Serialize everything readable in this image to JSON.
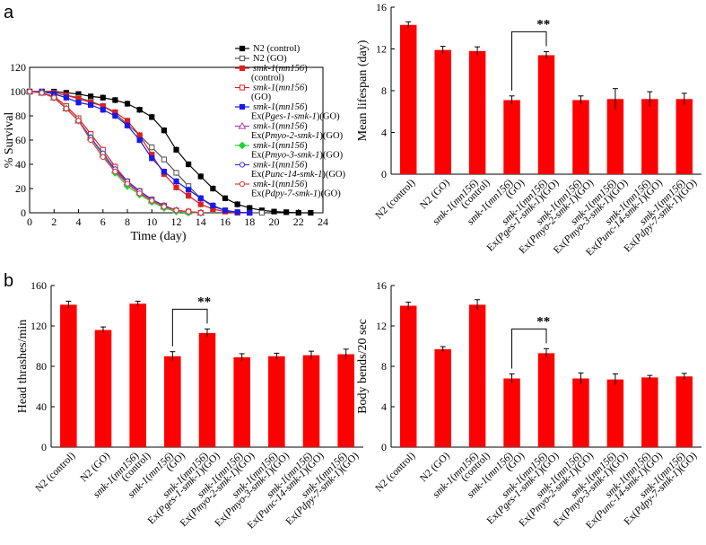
{
  "panels": {
    "a": "a",
    "b": "b"
  },
  "chart_data": [
    {
      "type": "line",
      "title": "",
      "xlabel": "Time (day)",
      "ylabel": "% Survival",
      "xlim": [
        0,
        24
      ],
      "ylim": [
        0,
        120
      ],
      "xticks": [
        "0",
        "2",
        "4",
        "6",
        "8",
        "10",
        "12",
        "14",
        "16",
        "18",
        "20",
        "22",
        "24"
      ],
      "yticks": [
        "0",
        "20",
        "40",
        "60",
        "80",
        "100",
        "120"
      ],
      "legend_position": "top-right",
      "series": [
        {
          "name": "N2 (control)",
          "label_parts": [
            "N2 (control)"
          ],
          "color": "#000000",
          "marker": "square",
          "filled": true,
          "x": [
            0,
            1,
            2,
            3,
            4,
            5,
            6,
            7,
            8,
            9,
            10,
            11,
            12,
            13,
            14,
            15,
            16,
            17,
            18,
            19,
            20,
            21,
            22,
            23
          ],
          "y": [
            100,
            100,
            100,
            99,
            98,
            96,
            95,
            93,
            90,
            85,
            79,
            68,
            52,
            40,
            30,
            20,
            12,
            7,
            4,
            2,
            1,
            0.5,
            0,
            0
          ]
        },
        {
          "name": "N2 (GO)",
          "label_parts": [
            "N2 (GO)"
          ],
          "color": "#555555",
          "marker": "square",
          "filled": false,
          "x": [
            0,
            1,
            2,
            3,
            4,
            5,
            6,
            7,
            8,
            9,
            10,
            11,
            12,
            13,
            14,
            15,
            16,
            17,
            18,
            19
          ],
          "y": [
            100,
            100,
            99,
            97,
            95,
            92,
            88,
            82,
            73,
            64,
            54,
            44,
            33,
            22,
            12,
            5,
            2,
            0.5,
            0,
            0
          ]
        },
        {
          "name": "smk-1(mn156)(control)",
          "label_parts": [
            "smk-1(mn156)",
            "(control)"
          ],
          "color": "#e01e1e",
          "marker": "square",
          "filled": true,
          "x": [
            0,
            1,
            2,
            3,
            4,
            5,
            6,
            7,
            8,
            9,
            10,
            11,
            12,
            13,
            14,
            15,
            16,
            17,
            18
          ],
          "y": [
            100,
            100,
            99,
            97,
            94,
            91,
            88,
            83,
            76,
            64,
            48,
            32,
            21,
            14,
            7,
            3,
            1,
            0,
            0
          ]
        },
        {
          "name": "smk-1(mn156)(GO)",
          "label_parts": [
            "smk-1(mn156)",
            "(GO)"
          ],
          "color": "#e01e1e",
          "marker": "square",
          "filled": false,
          "x": [
            0,
            1,
            2,
            3,
            4,
            5,
            6,
            7,
            8,
            9,
            10,
            11,
            12,
            13,
            14
          ],
          "y": [
            100,
            99,
            96,
            88,
            78,
            65,
            52,
            38,
            26,
            18,
            11,
            6,
            2,
            1,
            0
          ]
        },
        {
          "name": "smk-1(mn156) Ex(Pges-1-smk-1)(GO)",
          "label_parts": [
            "smk-1(mn156)",
            "Ex(Pges-1-smk-1)(GO)"
          ],
          "color": "#1a1ae6",
          "marker": "square",
          "filled": true,
          "x": [
            0,
            1,
            2,
            3,
            4,
            5,
            6,
            7,
            8,
            9,
            10,
            11,
            12,
            13,
            14,
            15,
            16,
            17,
            18
          ],
          "y": [
            100,
            100,
            98,
            95,
            91,
            89,
            85,
            80,
            72,
            60,
            45,
            34,
            26,
            19,
            12,
            6,
            2,
            0.5,
            0
          ]
        },
        {
          "name": "smk-1(mn156) Ex(Pmyo-2-smk-1)(GO)",
          "label_parts": [
            "smk-1(mn156)",
            "Ex(Pmyo-2-smk-1)(GO)"
          ],
          "color": "#b03cb0",
          "marker": "triangle",
          "filled": false,
          "x": [
            0,
            1,
            2,
            3,
            4,
            5,
            6,
            7,
            8,
            9,
            10,
            11,
            12,
            13,
            14
          ],
          "y": [
            100,
            99,
            95,
            86,
            76,
            62,
            48,
            35,
            25,
            17,
            10,
            5,
            2,
            1,
            0
          ]
        },
        {
          "name": "smk-1(mn156) Ex(Pmyo-3-smk-1)(GO)",
          "label_parts": [
            "smk-1(mn156)",
            "Ex(Pmyo-3-smk-1)(GO)"
          ],
          "color": "#22d13a",
          "marker": "diamond",
          "filled": true,
          "x": [
            0,
            1,
            2,
            3,
            4,
            5,
            6,
            7,
            8,
            9,
            10,
            11,
            12,
            13,
            14
          ],
          "y": [
            100,
            99,
            95,
            86,
            76,
            62,
            48,
            33,
            22,
            15,
            9,
            4,
            1,
            0,
            0
          ]
        },
        {
          "name": "smk-1(mn156) Ex(Punc-14-smk-1)(GO)",
          "label_parts": [
            "smk-1(mn156)",
            "Ex(Punc-14-smk-1)(GO)"
          ],
          "color": "#3a3ad6",
          "marker": "circle",
          "filled": false,
          "x": [
            0,
            1,
            2,
            3,
            4,
            5,
            6,
            7,
            8,
            9,
            10,
            11,
            12,
            13,
            14
          ],
          "y": [
            100,
            99,
            95,
            86,
            76,
            62,
            49,
            36,
            26,
            18,
            11,
            6,
            2,
            1,
            0
          ]
        },
        {
          "name": "smk-1(mn156) Ex(Pdpy-7-smk-1)(GO)",
          "label_parts": [
            "smk-1(mn156)",
            "Ex(Pdpy-7-smk-1)(GO)"
          ],
          "color": "#e03a3a",
          "marker": "circle",
          "filled": false,
          "x": [
            0,
            1,
            2,
            3,
            4,
            5,
            6,
            7,
            8,
            9,
            10,
            11,
            12,
            13,
            14
          ],
          "y": [
            100,
            99,
            95,
            86,
            76,
            60,
            46,
            34,
            24,
            16,
            10,
            5,
            2,
            1,
            0
          ]
        }
      ]
    },
    {
      "type": "bar",
      "title": "",
      "xlabel": "",
      "ylabel": "Mean lifespan (day)",
      "ylim": [
        0,
        16
      ],
      "yticks": [
        "0",
        "4",
        "8",
        "12",
        "16"
      ],
      "bar_color": "#ff0000",
      "categories": [
        "N2 (control)",
        "N2 (GO)",
        "smk-1(mn156) (control)",
        "smk-1(mn156) (GO)",
        "smk-1(mn156) Ex(Pges-1-smk-1)(GO)",
        "smk-1(mn156) Ex(Pmyo-2-smk-1)(GO)",
        "smk-1(mn156) Ex(Pmyo-3-smk-1)(GO)",
        "smk-1(mn156) Ex(Punc-14-smk-1)(GO)",
        "smk-1(mn156) Ex(Pdpy-7-smk-1)(GO)"
      ],
      "values": [
        14.3,
        11.9,
        11.8,
        7.1,
        11.4,
        7.1,
        7.2,
        7.2,
        7.2
      ],
      "errors": [
        0.3,
        0.35,
        0.4,
        0.4,
        0.35,
        0.4,
        1.0,
        0.7,
        0.55
      ],
      "annotation": {
        "text": "**",
        "from": 3,
        "to": 4
      }
    },
    {
      "type": "bar",
      "title": "",
      "xlabel": "",
      "ylabel": "Head thrashes/min",
      "ylim": [
        0,
        160
      ],
      "yticks": [
        "0",
        "40",
        "80",
        "120",
        "160"
      ],
      "bar_color": "#ff0000",
      "categories": [
        "N2 (control)",
        "N2 (GO)",
        "smk-1(mn156) (control)",
        "smk-1(mn156) (GO)",
        "smk-1(mn156) Ex(Pges-1-smk-1)(GO)",
        "smk-1(mn156) Ex(Pmyo-2-smk-1)(GO)",
        "smk-1(mn156) Ex(Pmyo-3-smk-1)(GO)",
        "smk-1(mn156) Ex(Punc-14-smk-1)(GO)",
        "smk-1(mn156) Ex(Pdpy-7-smk-1)(GO)"
      ],
      "values": [
        141,
        116,
        142,
        90,
        113,
        89,
        90,
        91,
        92
      ],
      "errors": [
        3.5,
        3,
        2.5,
        4.5,
        4,
        3.5,
        3,
        4,
        5
      ],
      "annotation": {
        "text": "**",
        "from": 3,
        "to": 4
      }
    },
    {
      "type": "bar",
      "title": "",
      "xlabel": "",
      "ylabel": "Body bends/20 sec",
      "ylim": [
        0,
        16
      ],
      "yticks": [
        "0",
        "4",
        "8",
        "12",
        "16"
      ],
      "bar_color": "#ff0000",
      "categories": [
        "N2 (control)",
        "N2 (GO)",
        "smk-1(mn156) (control)",
        "smk-1(mn156) (GO)",
        "smk-1(mn156) Ex(Pges-1-smk-1)(GO)",
        "smk-1(mn156) Ex(Pmyo-2-smk-1)(GO)",
        "smk-1(mn156) Ex(Pmyo-3-smk-1)(GO)",
        "smk-1(mn156) Ex(Punc-14-smk-1)(GO)",
        "smk-1(mn156) Ex(Pdpy-7-smk-1)(GO)"
      ],
      "values": [
        14.0,
        9.7,
        14.1,
        6.8,
        9.3,
        6.8,
        6.7,
        6.9,
        7.0
      ],
      "errors": [
        0.35,
        0.25,
        0.5,
        0.45,
        0.45,
        0.55,
        0.55,
        0.2,
        0.3
      ],
      "annotation": {
        "text": "**",
        "from": 3,
        "to": 4
      }
    }
  ]
}
